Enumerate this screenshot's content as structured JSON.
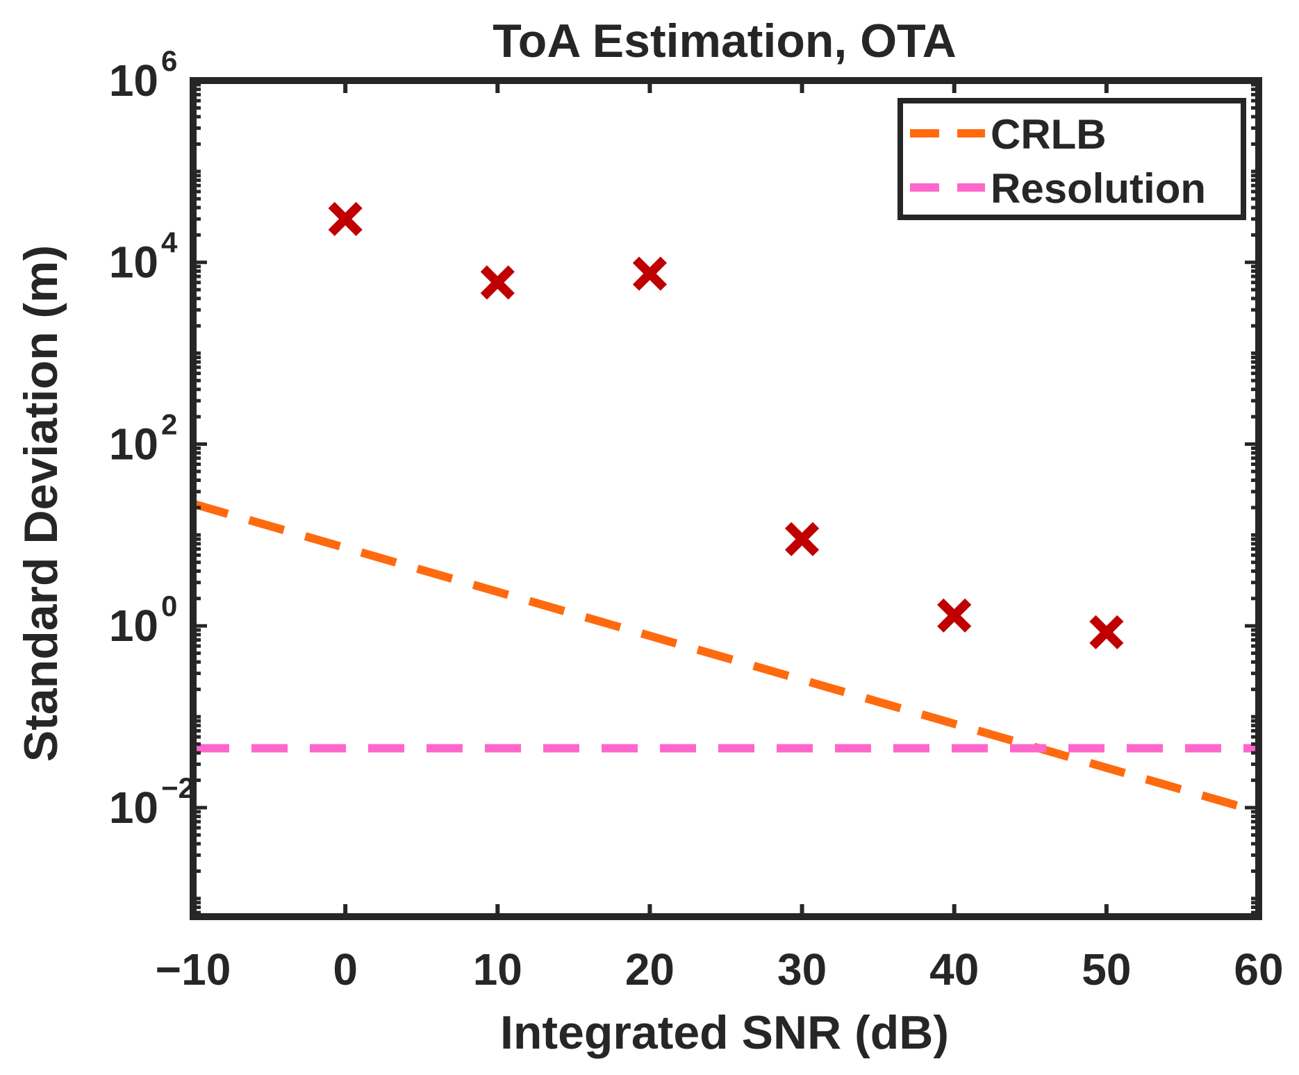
{
  "chart_data": {
    "type": "scatter",
    "title": "ToA Estimation, OTA",
    "xlabel": "Integrated SNR (dB)",
    "ylabel": "Standard Deviation (m)",
    "xlim": [
      -10,
      60
    ],
    "ylim_log10": [
      -3.2,
      6
    ],
    "yscale": "log",
    "grid": false,
    "x_ticks": [
      -10,
      0,
      10,
      20,
      30,
      40,
      50,
      60
    ],
    "x_tick_labels": [
      "−10",
      "0",
      "10",
      "20",
      "30",
      "40",
      "50",
      "60"
    ],
    "y_ticks": [
      {
        "base": "10",
        "exp": "−2",
        "log10": -2
      },
      {
        "base": "10",
        "exp": "0",
        "log10": 0
      },
      {
        "base": "10",
        "exp": "2",
        "log10": 2
      },
      {
        "base": "10",
        "exp": "4",
        "log10": 4
      },
      {
        "base": "10",
        "exp": "6",
        "log10": 6
      }
    ],
    "measurements": {
      "marker": "x",
      "color": "#c00000",
      "x": [
        0,
        10,
        20,
        30,
        40,
        50
      ],
      "y": [
        30000,
        6000,
        7500,
        9,
        1.3,
        0.85
      ]
    },
    "series": [
      {
        "name": "CRLB",
        "style": "dashed",
        "color": "#ff6a0e",
        "x": [
          -10,
          60
        ],
        "y": [
          22,
          0.009
        ]
      },
      {
        "name": "Resolution",
        "style": "dashed",
        "color": "#ff66cc",
        "x": [
          -10,
          60
        ],
        "y": [
          0.045,
          0.045
        ]
      }
    ],
    "legend": {
      "position": "top-right",
      "entries": [
        "CRLB",
        "Resolution"
      ]
    }
  }
}
